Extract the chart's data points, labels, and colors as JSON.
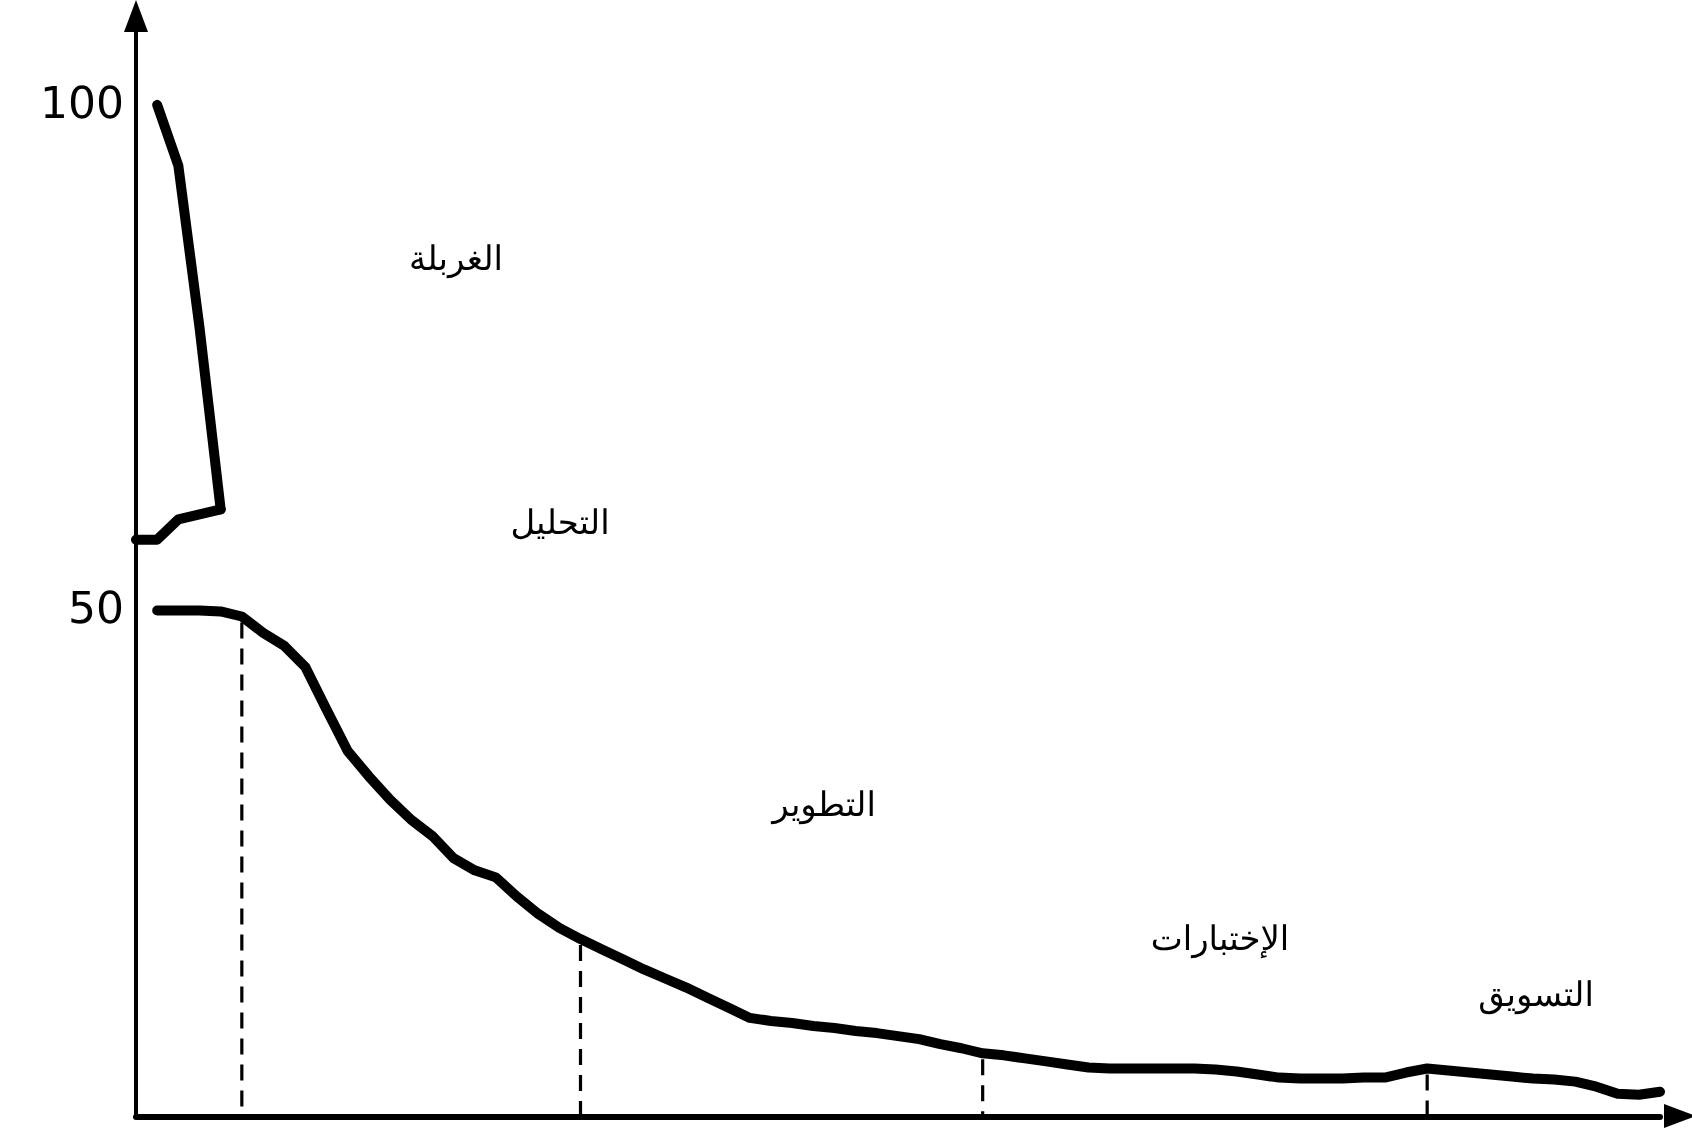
{
  "chart_data": {
    "type": "line",
    "categories": [
      null,
      null,
      null,
      null,
      null,
      null,
      null,
      null,
      null,
      null,
      null,
      null,
      null,
      null,
      null,
      null,
      null,
      null,
      null,
      null,
      null,
      null,
      null,
      null,
      null,
      null,
      null,
      null,
      null,
      null,
      null,
      null,
      null,
      null,
      null,
      null,
      null,
      null,
      null,
      null,
      null,
      null,
      null,
      null,
      null,
      null,
      null,
      null,
      null,
      null,
      null,
      null,
      null,
      null,
      null,
      null,
      null,
      null,
      null,
      null,
      null,
      null,
      null,
      null,
      null,
      null,
      null,
      null,
      null,
      null,
      null,
      null,
      null
    ],
    "ylim": [
      0,
      108
    ],
    "yticks": [
      50,
      100
    ],
    "grid": false,
    "marker": "none",
    "line_style": "solid",
    "series": [
      {
        "color": "#000000",
        "values": [
          null,
          100,
          94,
          78,
          60,
          null,
          null,
          null,
          null,
          null,
          null,
          null,
          null,
          null,
          null,
          null,
          null,
          null,
          null,
          null,
          null,
          null,
          null,
          null,
          null,
          null,
          null,
          null,
          null,
          null,
          null,
          null,
          null,
          null,
          null,
          null,
          null,
          null,
          null,
          null,
          null,
          null,
          null,
          null,
          null,
          null,
          null,
          null,
          null,
          null,
          null,
          null,
          null,
          null,
          null,
          null,
          null,
          null,
          null,
          null,
          null,
          null,
          null,
          null,
          null,
          null,
          null,
          null,
          null,
          null,
          null,
          null,
          null
        ]
      },
      {
        "color": "#000000",
        "values": [
          57,
          57,
          59,
          59.5,
          60,
          null,
          null,
          null,
          null,
          null,
          null,
          null,
          null,
          null,
          null,
          null,
          null,
          null,
          null,
          null,
          null,
          null,
          null,
          null,
          null,
          null,
          null,
          null,
          null,
          null,
          null,
          null,
          null,
          null,
          null,
          null,
          null,
          null,
          null,
          null,
          null,
          null,
          null,
          null,
          null,
          null,
          null,
          null,
          null,
          null,
          null,
          null,
          null,
          null,
          null,
          null,
          null,
          null,
          null,
          null,
          null,
          null,
          null,
          null,
          null,
          null,
          null,
          null,
          null,
          null,
          null,
          null,
          null
        ]
      },
      {
        "color": "#000000",
        "values": [
          null,
          50,
          50,
          50,
          49.9,
          49.4,
          47.8,
          46.5,
          44.4,
          40.2,
          36.1,
          33.6,
          31.3,
          29.3,
          27.7,
          25.5,
          24.3,
          23.6,
          21.7,
          20,
          18.6,
          17.5,
          16.5,
          15.5,
          14.5,
          13.6,
          12.7,
          11.7,
          10.7,
          9.7,
          9.4,
          9.2,
          8.9,
          8.7,
          8.4,
          8.2,
          7.9,
          7.6,
          7.1,
          6.7,
          6.2,
          6,
          5.7,
          5.4,
          5.1,
          4.8,
          4.7,
          4.7,
          4.7,
          4.7,
          4.7,
          4.6,
          4.4,
          4.1,
          3.8,
          3.7,
          3.7,
          3.7,
          3.8,
          3.8,
          4.3,
          4.7,
          4.5,
          4.3,
          4.1,
          3.9,
          3.7,
          3.6,
          3.4,
          2.9,
          2.2,
          2.1,
          2.4
        ]
      }
    ],
    "annotations": [
      "الغربلة",
      "التحليل",
      "التطوير",
      "الإختبارات",
      "التسويق"
    ]
  }
}
